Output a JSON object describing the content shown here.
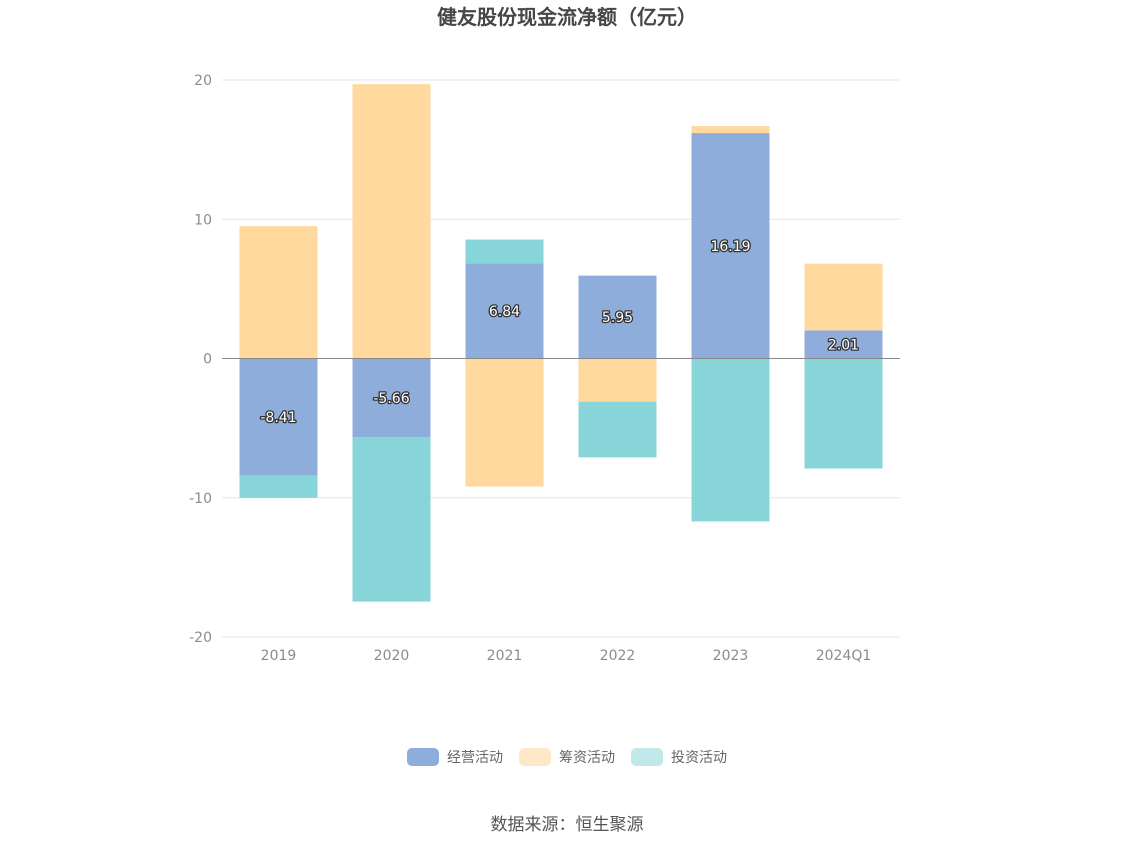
{
  "chart_data": {
    "type": "bar",
    "stacked": true,
    "title": "健友股份现金流净额（亿元）",
    "categories": [
      "2019",
      "2020",
      "2021",
      "2022",
      "2023",
      "2024Q1"
    ],
    "series": [
      {
        "name": "经营活动",
        "color": "#8eadda",
        "values": [
          -8.41,
          -5.66,
          6.84,
          5.95,
          16.19,
          2.01
        ],
        "show_labels": true
      },
      {
        "name": "筹资活动",
        "color": "#ffd99e",
        "values": [
          9.5,
          19.7,
          -9.2,
          -3.1,
          0.5,
          4.8
        ],
        "show_labels": false
      },
      {
        "name": "投资活动",
        "color": "#88d5d9",
        "values": [
          -1.6,
          -11.8,
          1.7,
          -4.0,
          -11.7,
          -7.9
        ],
        "show_labels": false
      }
    ],
    "ylim": [
      -20,
      20
    ],
    "yticks": [
      20,
      10,
      0,
      -10,
      -20
    ],
    "grid": true,
    "legend_position": "bottom-center",
    "source": "数据来源：恒生聚源"
  }
}
